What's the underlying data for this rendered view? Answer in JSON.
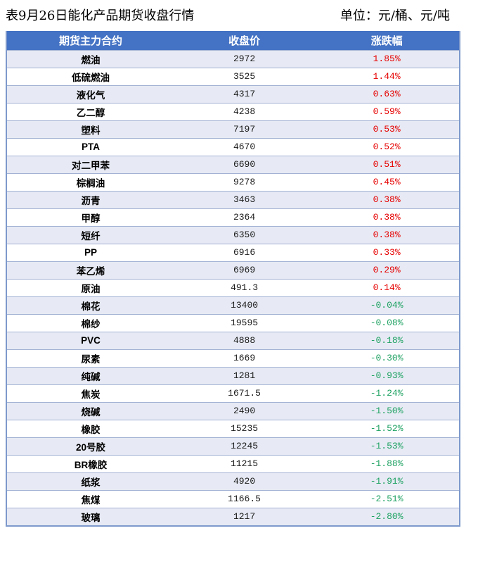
{
  "title": "表9月26日能化产品期货收盘行情",
  "unit_label": "单位：元/桶、元/吨",
  "colors": {
    "header_bg": "#4472C4",
    "band_row_bg": "#E7EAF4",
    "plain_row_bg": "#FFFFFF",
    "up_red": "#E60000",
    "down_green": "#1FA263",
    "row_border": "#A3B2D4",
    "outer_border": "#7E99CC"
  },
  "chart_data": {
    "type": "table",
    "title": "表9月26日能化产品期货收盘行情",
    "unit_note": "单位：元/桶、元/吨",
    "columns": [
      "期货主力合约",
      "收盘价",
      "涨跌幅"
    ],
    "color_convention": {
      "up": "red",
      "down": "green"
    },
    "rows": [
      {
        "name": "燃油",
        "close": "2972",
        "change": "1.85%",
        "direction": "up"
      },
      {
        "name": "低硫燃油",
        "close": "3525",
        "change": "1.44%",
        "direction": "up"
      },
      {
        "name": "液化气",
        "close": "4317",
        "change": "0.63%",
        "direction": "up"
      },
      {
        "name": "乙二醇",
        "close": "4238",
        "change": "0.59%",
        "direction": "up"
      },
      {
        "name": "塑料",
        "close": "7197",
        "change": "0.53%",
        "direction": "up"
      },
      {
        "name": "PTA",
        "close": "4670",
        "change": "0.52%",
        "direction": "up"
      },
      {
        "name": "对二甲苯",
        "close": "6690",
        "change": "0.51%",
        "direction": "up"
      },
      {
        "name": "棕榈油",
        "close": "9278",
        "change": "0.45%",
        "direction": "up"
      },
      {
        "name": "沥青",
        "close": "3463",
        "change": "0.38%",
        "direction": "up"
      },
      {
        "name": "甲醇",
        "close": "2364",
        "change": "0.38%",
        "direction": "up"
      },
      {
        "name": "短纤",
        "close": "6350",
        "change": "0.38%",
        "direction": "up"
      },
      {
        "name": "PP",
        "close": "6916",
        "change": "0.33%",
        "direction": "up"
      },
      {
        "name": "苯乙烯",
        "close": "6969",
        "change": "0.29%",
        "direction": "up"
      },
      {
        "name": "原油",
        "close": "491.3",
        "change": "0.14%",
        "direction": "up"
      },
      {
        "name": "棉花",
        "close": "13400",
        "change": "-0.04%",
        "direction": "down"
      },
      {
        "name": "棉纱",
        "close": "19595",
        "change": "-0.08%",
        "direction": "down"
      },
      {
        "name": "PVC",
        "close": "4888",
        "change": "-0.18%",
        "direction": "down"
      },
      {
        "name": "尿素",
        "close": "1669",
        "change": "-0.30%",
        "direction": "down"
      },
      {
        "name": "纯碱",
        "close": "1281",
        "change": "-0.93%",
        "direction": "down"
      },
      {
        "name": "焦炭",
        "close": "1671.5",
        "change": "-1.24%",
        "direction": "down"
      },
      {
        "name": "烧碱",
        "close": "2490",
        "change": "-1.50%",
        "direction": "down"
      },
      {
        "name": "橡胶",
        "close": "15235",
        "change": "-1.52%",
        "direction": "down"
      },
      {
        "name": "20号胶",
        "close": "12245",
        "change": "-1.53%",
        "direction": "down"
      },
      {
        "name": "BR橡胶",
        "close": "11215",
        "change": "-1.88%",
        "direction": "down"
      },
      {
        "name": "纸浆",
        "close": "4920",
        "change": "-1.91%",
        "direction": "down"
      },
      {
        "name": "焦煤",
        "close": "1166.5",
        "change": "-2.51%",
        "direction": "down"
      },
      {
        "name": "玻璃",
        "close": "1217",
        "change": "-2.80%",
        "direction": "down"
      }
    ]
  }
}
